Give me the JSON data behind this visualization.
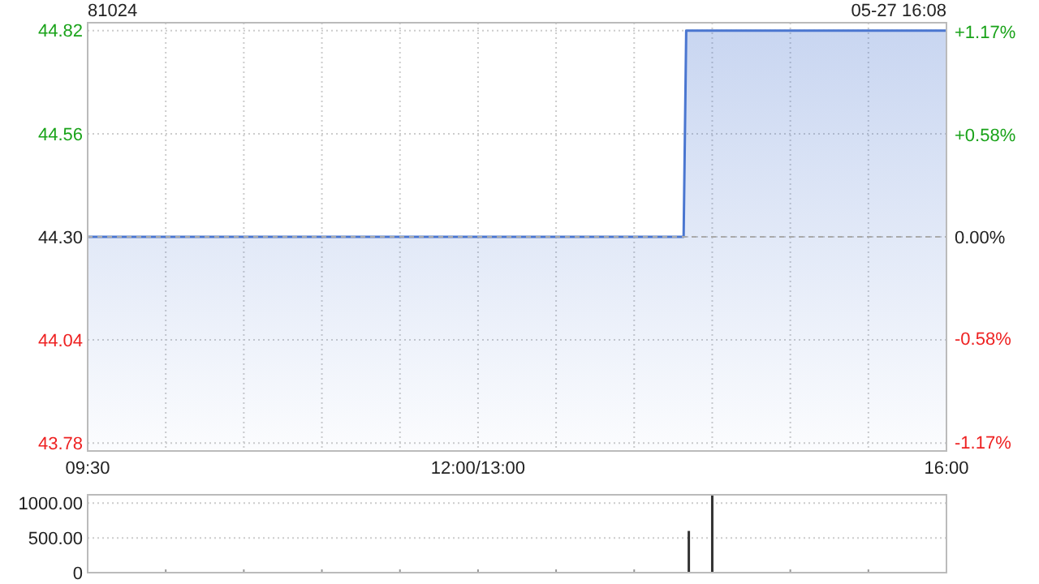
{
  "chart_data": [
    {
      "type": "area",
      "title": "81024",
      "annotations": [
        "05-27 16:08"
      ],
      "categories": [
        "09:30",
        null,
        null,
        null,
        null,
        null,
        null,
        null,
        null,
        null,
        null,
        null,
        null,
        null,
        null,
        null,
        null,
        null,
        null,
        null,
        null,
        null,
        null,
        null,
        null,
        null,
        null,
        null,
        null,
        null,
        null,
        null,
        null,
        null,
        null,
        null,
        null,
        null,
        null,
        null,
        null,
        null,
        null,
        null,
        null,
        null,
        null,
        null,
        null,
        null,
        null,
        null,
        null,
        null,
        null,
        null,
        null,
        null,
        null,
        null,
        null,
        null,
        null,
        null,
        null,
        null,
        null,
        null,
        null,
        null,
        null,
        null,
        null,
        null,
        null,
        null,
        null,
        null,
        null,
        null,
        null,
        null,
        null,
        null,
        null,
        null,
        null,
        null,
        null,
        null,
        null,
        null,
        null,
        null,
        null,
        null,
        null,
        null,
        null,
        null,
        null,
        null,
        null,
        null,
        null,
        null,
        null,
        null,
        null,
        null,
        null,
        null,
        null,
        null,
        null,
        null,
        null,
        null,
        null,
        null,
        null,
        null,
        null,
        null,
        null,
        null,
        null,
        null,
        null,
        null,
        null,
        null,
        null,
        null,
        null,
        null,
        null,
        null,
        null,
        null,
        null,
        null,
        null,
        null,
        null,
        null,
        null,
        null,
        null,
        null,
        "12:00/13:00",
        null,
        null,
        null,
        null,
        null,
        null,
        null,
        null,
        null,
        null,
        null,
        null,
        null,
        null,
        null,
        null,
        null,
        null,
        null,
        null,
        null,
        null,
        null,
        null,
        null,
        null,
        null,
        null,
        null,
        null,
        null,
        null,
        null,
        null,
        null,
        null,
        null,
        null,
        null,
        null,
        null,
        null,
        null,
        null,
        null,
        null,
        null,
        null,
        null,
        null,
        null,
        null,
        null,
        null,
        null,
        null,
        null,
        null,
        null,
        null,
        null,
        null,
        null,
        null,
        null,
        null,
        null,
        null,
        null,
        null,
        null,
        null,
        null,
        null,
        null,
        null,
        null,
        null,
        null,
        null,
        null,
        null,
        null,
        null,
        null,
        null,
        null,
        null,
        null,
        null,
        null,
        null,
        null,
        null,
        null,
        null,
        null,
        null,
        null,
        null,
        null,
        null,
        null,
        null,
        null,
        null,
        null,
        null,
        null,
        null,
        null,
        null,
        null,
        null,
        null,
        null,
        null,
        null,
        null,
        null,
        null,
        null,
        null,
        null,
        null,
        null,
        null,
        null,
        null,
        null,
        null,
        null,
        null,
        null,
        null,
        null,
        null,
        null,
        null,
        null,
        null,
        null,
        null,
        null,
        null,
        null,
        null,
        null,
        null,
        null,
        null,
        null,
        null,
        null,
        null,
        null,
        null,
        null,
        null,
        null,
        null,
        null,
        null,
        null,
        null,
        null,
        null,
        null,
        null,
        null,
        null,
        null,
        null,
        null,
        null,
        null,
        null,
        null,
        null,
        "16:00"
      ],
      "series": [
        {
          "color": "#4a76d0",
          "values": [
            44.3,
            44.3,
            44.3,
            44.3,
            44.3,
            44.3,
            44.3,
            44.3,
            44.3,
            44.3,
            44.3,
            44.3,
            44.3,
            44.3,
            44.3,
            44.3,
            44.3,
            44.3,
            44.3,
            44.3,
            44.3,
            44.3,
            44.3,
            44.3,
            44.3,
            44.3,
            44.3,
            44.3,
            44.3,
            44.3,
            44.3,
            44.3,
            44.3,
            44.3,
            44.3,
            44.3,
            44.3,
            44.3,
            44.3,
            44.3,
            44.3,
            44.3,
            44.3,
            44.3,
            44.3,
            44.3,
            44.3,
            44.3,
            44.3,
            44.3,
            44.3,
            44.3,
            44.3,
            44.3,
            44.3,
            44.3,
            44.3,
            44.3,
            44.3,
            44.3,
            44.3,
            44.3,
            44.3,
            44.3,
            44.3,
            44.3,
            44.3,
            44.3,
            44.3,
            44.3,
            44.3,
            44.3,
            44.3,
            44.3,
            44.3,
            44.3,
            44.3,
            44.3,
            44.3,
            44.3,
            44.3,
            44.3,
            44.3,
            44.3,
            44.3,
            44.3,
            44.3,
            44.3,
            44.3,
            44.3,
            44.3,
            44.3,
            44.3,
            44.3,
            44.3,
            44.3,
            44.3,
            44.3,
            44.3,
            44.3,
            44.3,
            44.3,
            44.3,
            44.3,
            44.3,
            44.3,
            44.3,
            44.3,
            44.3,
            44.3,
            44.3,
            44.3,
            44.3,
            44.3,
            44.3,
            44.3,
            44.3,
            44.3,
            44.3,
            44.3,
            44.3,
            44.3,
            44.3,
            44.3,
            44.3,
            44.3,
            44.3,
            44.3,
            44.3,
            44.3,
            44.3,
            44.3,
            44.3,
            44.3,
            44.3,
            44.3,
            44.3,
            44.3,
            44.3,
            44.3,
            44.3,
            44.3,
            44.3,
            44.3,
            44.3,
            44.3,
            44.3,
            44.3,
            44.3,
            44.3,
            44.3,
            44.3,
            44.3,
            44.3,
            44.3,
            44.3,
            44.3,
            44.3,
            44.3,
            44.3,
            44.3,
            44.3,
            44.3,
            44.3,
            44.3,
            44.3,
            44.3,
            44.3,
            44.3,
            44.3,
            44.3,
            44.3,
            44.3,
            44.3,
            44.3,
            44.3,
            44.3,
            44.3,
            44.3,
            44.3,
            44.3,
            44.3,
            44.3,
            44.3,
            44.3,
            44.3,
            44.3,
            44.3,
            44.3,
            44.3,
            44.3,
            44.3,
            44.3,
            44.3,
            44.3,
            44.3,
            44.3,
            44.3,
            44.3,
            44.3,
            44.3,
            44.3,
            44.3,
            44.3,
            44.3,
            44.3,
            44.3,
            44.3,
            44.3,
            44.3,
            44.3,
            44.3,
            44.3,
            44.3,
            44.3,
            44.3,
            44.3,
            44.3,
            44.3,
            44.3,
            44.3,
            44.3,
            44.3,
            44.3,
            44.3,
            44.3,
            44.3,
            44.3,
            44.3,
            44.3,
            44.82,
            44.82,
            44.82,
            44.82,
            44.82,
            44.82,
            44.82,
            44.82,
            44.82,
            44.82,
            44.82,
            44.82,
            44.82,
            44.82,
            44.82,
            44.82,
            44.82,
            44.82,
            44.82,
            44.82,
            44.82,
            44.82,
            44.82,
            44.82,
            44.82,
            44.82,
            44.82,
            44.82,
            44.82,
            44.82,
            44.82,
            44.82,
            44.82,
            44.82,
            44.82,
            44.82,
            44.82,
            44.82,
            44.82,
            44.82,
            44.82,
            44.82,
            44.82,
            44.82,
            44.82,
            44.82,
            44.82,
            44.82,
            44.82,
            44.82,
            44.82,
            44.82,
            44.82,
            44.82,
            44.82,
            44.82,
            44.82,
            44.82,
            44.82,
            44.82,
            44.82,
            44.82,
            44.82,
            44.82,
            44.82,
            44.82,
            44.82,
            44.82,
            44.82,
            44.82,
            44.82,
            44.82,
            44.82,
            44.82,
            44.82,
            44.82,
            44.82,
            44.82,
            44.82,
            44.82,
            44.82,
            44.82,
            44.82,
            44.82,
            44.82,
            44.82,
            44.82,
            44.82,
            44.82,
            44.82,
            44.82,
            44.82,
            44.82,
            44.82,
            44.82,
            44.82,
            44.82,
            44.82,
            44.82,
            44.82,
            44.82
          ]
        }
      ],
      "ylim": [
        43.76,
        44.84
      ],
      "yticks": [
        43.78,
        44.04,
        {
          "value": 44.3,
          "label": "44.30"
        },
        44.56,
        44.82
      ],
      "y2lim": [
        -1.22,
        1.22
      ],
      "y2ticks": [
        {
          "value": -1.17,
          "label": "-1.17%"
        },
        {
          "value": -0.58,
          "label": "-0.58%"
        },
        {
          "value": 0,
          "label": "0.00%"
        },
        {
          "value": 0.58,
          "label": "+0.58%"
        },
        {
          "value": 1.17,
          "label": "+1.17%"
        }
      ],
      "grid": true,
      "ref_lines": [
        {
          "axis": "y",
          "value": 44.3,
          "color": "#aaaaaa",
          "line_style": "dashed"
        }
      ]
    },
    {
      "type": "bar",
      "color": "#333333",
      "categories": [
        null,
        null,
        null,
        null,
        null,
        null,
        null,
        null,
        null,
        null,
        null,
        null,
        null,
        null,
        null,
        null,
        null,
        null,
        null,
        null,
        null,
        null,
        null,
        null,
        null,
        null,
        null,
        null,
        null,
        null,
        null,
        null,
        null,
        null,
        null,
        null,
        null,
        null,
        null,
        null,
        null,
        null,
        null,
        null,
        null,
        null,
        null,
        null,
        null,
        null,
        null,
        null,
        null,
        null,
        null,
        null,
        null,
        null,
        null,
        null,
        null,
        null,
        null,
        null,
        null,
        null,
        null,
        null,
        null,
        null,
        null,
        null,
        null,
        null,
        null,
        null,
        null,
        null,
        null,
        null,
        null,
        null,
        null,
        null,
        null,
        null,
        null,
        null,
        null,
        null,
        null,
        null,
        null,
        null,
        null,
        null,
        null,
        null,
        null,
        null,
        null,
        null,
        null,
        null,
        null,
        null,
        null,
        null,
        null,
        null,
        null,
        null,
        null,
        null,
        null,
        null,
        null,
        null,
        null,
        null,
        null,
        null,
        null,
        null,
        null,
        null,
        null,
        null,
        null,
        null,
        null,
        null,
        null,
        null,
        null,
        null,
        null,
        null,
        null,
        null,
        null,
        null,
        null,
        null,
        null,
        null,
        null,
        null,
        null,
        null,
        null,
        null,
        null,
        null,
        null,
        null,
        null,
        null,
        null,
        null,
        null,
        null,
        null,
        null,
        null,
        null,
        null,
        null,
        null,
        null,
        null,
        null,
        null,
        null,
        null,
        null,
        null,
        null,
        null,
        null,
        null,
        null,
        null,
        null,
        null,
        null,
        null,
        null,
        null,
        null,
        null,
        null,
        null,
        null,
        null,
        null,
        null,
        null,
        null,
        null,
        null,
        null,
        null,
        null,
        null,
        null,
        null,
        null,
        null,
        null,
        null,
        null,
        null,
        null,
        null,
        null,
        null,
        null,
        null,
        null,
        null,
        null,
        null,
        null,
        null,
        null,
        null,
        null,
        null,
        null,
        null,
        null,
        null,
        null,
        null,
        null,
        null,
        null,
        null,
        null,
        null,
        null,
        null,
        null,
        null,
        null,
        null,
        null,
        null,
        null,
        null,
        null,
        null,
        null,
        null,
        null,
        null,
        null,
        null,
        null,
        null,
        null,
        null,
        null,
        null,
        null,
        null,
        null,
        null,
        null,
        null,
        null,
        null,
        null,
        null,
        null,
        null,
        null,
        null,
        null,
        null,
        null,
        null,
        null,
        null,
        null,
        null,
        null,
        null,
        null,
        null,
        null,
        null,
        null,
        null,
        null,
        null,
        null,
        null,
        null,
        null,
        null,
        null,
        null,
        null,
        null,
        null,
        null,
        null,
        null,
        null,
        null,
        null,
        null,
        null,
        null,
        null,
        null,
        null,
        null,
        null,
        null,
        null,
        null,
        null,
        null,
        null,
        null,
        null,
        null,
        null
      ],
      "values": [
        null,
        null,
        null,
        null,
        null,
        null,
        null,
        null,
        null,
        null,
        null,
        null,
        null,
        null,
        null,
        null,
        null,
        null,
        null,
        null,
        null,
        null,
        null,
        null,
        null,
        null,
        null,
        null,
        null,
        null,
        null,
        null,
        null,
        null,
        null,
        null,
        null,
        null,
        null,
        null,
        null,
        null,
        null,
        null,
        null,
        null,
        null,
        null,
        null,
        null,
        null,
        null,
        null,
        null,
        null,
        null,
        null,
        null,
        null,
        null,
        null,
        null,
        null,
        null,
        null,
        null,
        null,
        null,
        null,
        null,
        null,
        null,
        null,
        null,
        null,
        null,
        null,
        null,
        null,
        null,
        null,
        null,
        null,
        null,
        null,
        null,
        null,
        null,
        null,
        null,
        null,
        null,
        null,
        null,
        null,
        null,
        null,
        null,
        null,
        null,
        null,
        null,
        null,
        null,
        null,
        null,
        null,
        null,
        null,
        null,
        null,
        null,
        null,
        null,
        null,
        null,
        null,
        null,
        null,
        null,
        null,
        null,
        null,
        null,
        null,
        null,
        null,
        null,
        null,
        null,
        null,
        null,
        null,
        null,
        null,
        null,
        null,
        null,
        null,
        null,
        null,
        null,
        null,
        null,
        null,
        null,
        null,
        null,
        null,
        null,
        null,
        null,
        null,
        null,
        null,
        null,
        null,
        null,
        null,
        null,
        null,
        null,
        null,
        null,
        null,
        null,
        null,
        null,
        null,
        null,
        null,
        null,
        null,
        null,
        null,
        null,
        null,
        null,
        null,
        null,
        null,
        null,
        null,
        null,
        null,
        null,
        null,
        null,
        null,
        null,
        null,
        null,
        null,
        null,
        null,
        null,
        null,
        null,
        null,
        null,
        null,
        null,
        null,
        null,
        null,
        null,
        null,
        null,
        null,
        null,
        null,
        null,
        null,
        null,
        null,
        null,
        null,
        null,
        null,
        null,
        null,
        null,
        null,
        null,
        null,
        null,
        null,
        null,
        null,
        null,
        null,
        600,
        null,
        null,
        null,
        null,
        null,
        null,
        null,
        null,
        1120,
        null,
        null,
        null,
        null,
        null,
        null,
        null,
        null,
        null,
        null,
        null,
        null,
        null,
        null,
        null,
        null,
        null,
        null,
        null,
        null,
        null,
        null,
        null,
        null,
        null,
        null,
        null,
        null,
        null,
        null,
        null,
        null,
        null,
        null,
        null,
        null,
        null,
        null,
        null,
        null,
        null,
        null,
        null,
        null,
        null,
        null,
        null,
        null,
        null,
        null,
        null,
        null,
        null,
        null,
        null,
        null,
        null,
        null,
        null,
        null,
        null,
        null,
        null,
        null,
        null,
        null,
        null,
        null,
        null,
        null,
        null,
        null,
        null,
        null,
        null,
        null,
        null,
        null,
        null,
        null,
        null,
        null,
        null,
        null,
        null,
        null,
        null,
        null,
        null,
        null
      ],
      "ylim": [
        0,
        1120
      ],
      "yticks": [
        0,
        {
          "value": 500,
          "label": "500.00"
        },
        {
          "value": 1000,
          "label": "1000.00"
        }
      ],
      "grid": "y",
      "tick_labels": "y"
    }
  ]
}
